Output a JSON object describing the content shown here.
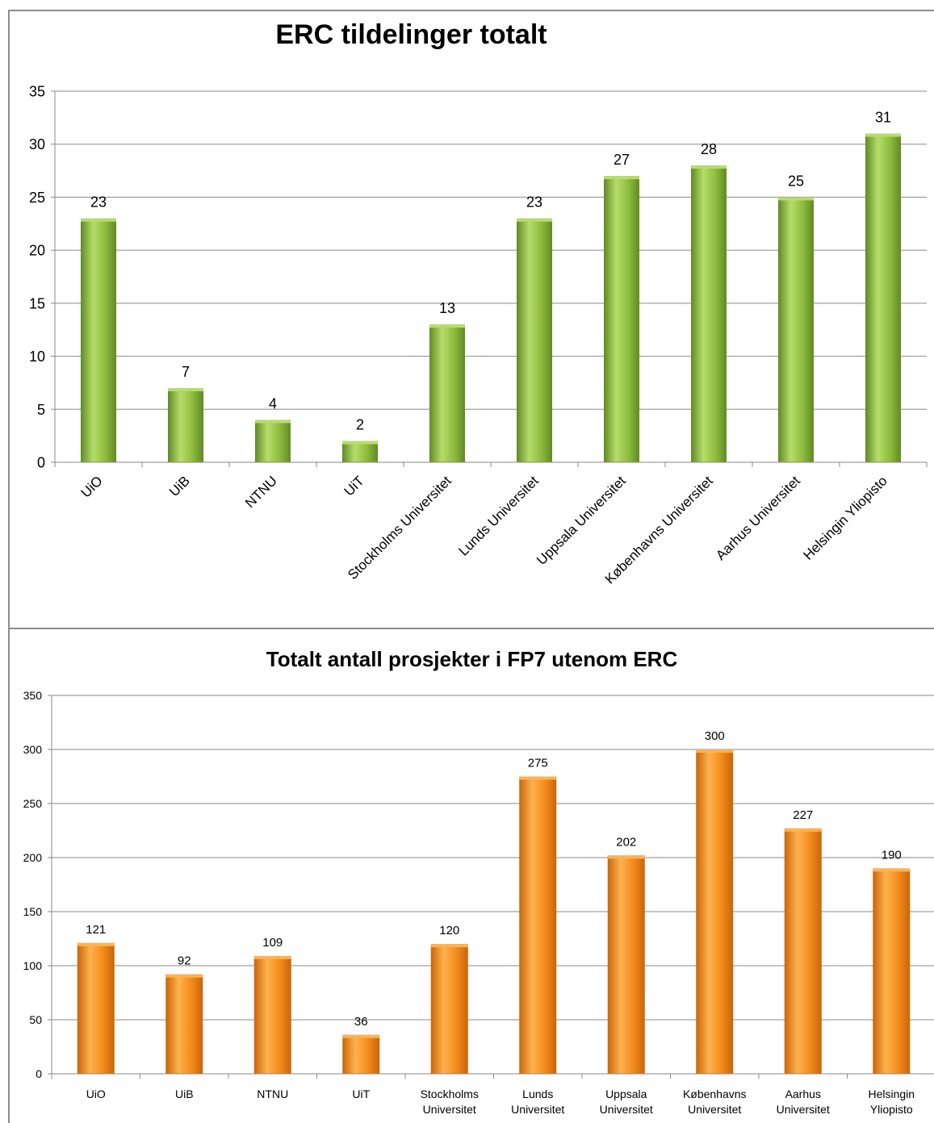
{
  "chart_data": [
    {
      "type": "bar",
      "title": "ERC tildelinger totalt",
      "categories": [
        "UiO",
        "UiB",
        "NTNU",
        "UiT",
        "Stockholms Universitet",
        "Lunds Universitet",
        "Uppsala Universitet",
        "Københavns Universitet",
        "Aarhus Universitet",
        "Helsingin Yliopisto"
      ],
      "values": [
        23,
        7,
        4,
        2,
        13,
        23,
        27,
        28,
        25,
        31
      ],
      "ylim": [
        0,
        35
      ],
      "yticks": [
        0,
        5,
        10,
        15,
        20,
        25,
        30,
        35
      ],
      "xlabel": "",
      "ylabel": "",
      "grid": true,
      "legend": "none",
      "bar_color": "#8dbb3d",
      "bar_highlight": "#b6dd6a",
      "bar_shadow": "#5f8a25"
    },
    {
      "type": "bar",
      "title": "Totalt antall prosjekter i FP7 utenom ERC",
      "categories": [
        "UiO",
        "UiB",
        "NTNU",
        "UiT",
        "Stockholms Universitet",
        "Lunds Universitet",
        "Uppsala Universitet",
        "Københavns Universitet",
        "Aarhus Universitet",
        "Helsingin Yliopisto"
      ],
      "category_lines": [
        [
          "UiO"
        ],
        [
          "UiB"
        ],
        [
          "NTNU"
        ],
        [
          "UiT"
        ],
        [
          "Stockholms",
          "Universitet"
        ],
        [
          "Lunds",
          "Universitet"
        ],
        [
          "Uppsala",
          "Universitet"
        ],
        [
          "Københavns",
          "Universitet"
        ],
        [
          "Aarhus",
          "Universitet"
        ],
        [
          "Helsingin",
          "Yliopisto"
        ]
      ],
      "values": [
        121,
        92,
        109,
        36,
        120,
        275,
        202,
        300,
        227,
        190
      ],
      "ylim": [
        0,
        350
      ],
      "yticks": [
        0,
        50,
        100,
        150,
        200,
        250,
        300,
        350
      ],
      "xlabel": "",
      "ylabel": "",
      "grid": true,
      "legend": "none",
      "bar_color": "#f28a1a",
      "bar_highlight": "#ffb24d",
      "bar_shadow": "#c9650a"
    }
  ]
}
